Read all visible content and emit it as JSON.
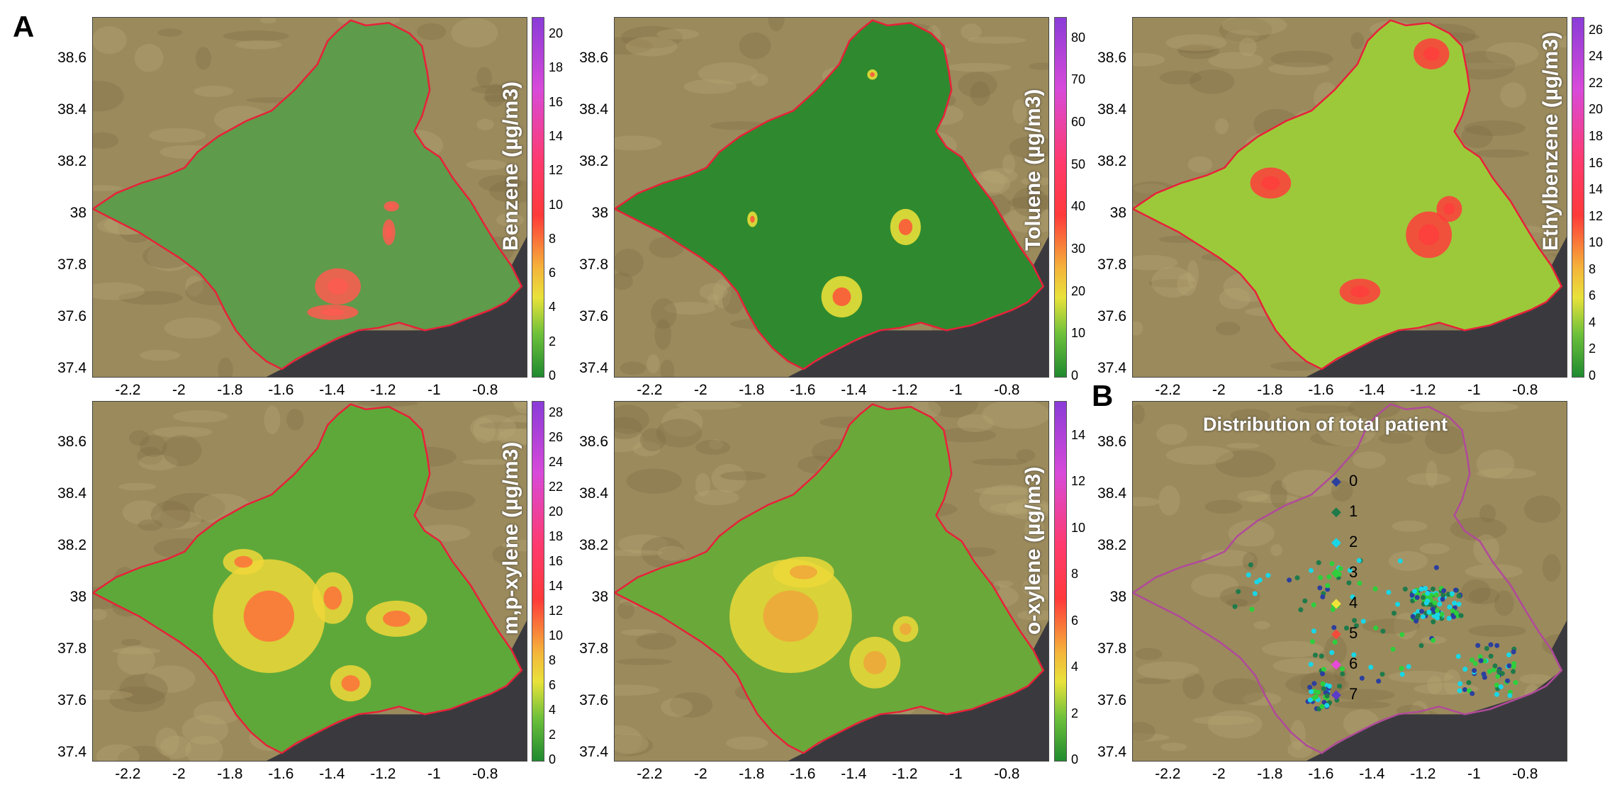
{
  "figure": {
    "panel_a_label": "A",
    "panel_b_label": "B"
  },
  "axes": {
    "lat_ticks": [
      "38.6",
      "38.4",
      "38.2",
      "38",
      "37.8",
      "37.6",
      "37.4"
    ],
    "lon_ticks": [
      "-2.2",
      "-2",
      "-1.8",
      "-1.6",
      "-1.4",
      "-1.2",
      "-1",
      "-0.8"
    ]
  },
  "maps": [
    {
      "id": "benzene",
      "colorbar_title": "Benzene (µg/m3)",
      "colorbar_ticks": [
        "20",
        "18",
        "16",
        "14",
        "12",
        "10",
        "8",
        "6",
        "4",
        "2",
        "0"
      ],
      "colorbar_range": [
        0,
        21
      ],
      "fill_color": "#5e9b4a",
      "hotspot_color": "#ff5a50"
    },
    {
      "id": "toluene",
      "colorbar_title": "Toluene (µg/m3)",
      "colorbar_ticks": [
        "80",
        "70",
        "60",
        "50",
        "40",
        "30",
        "20",
        "10",
        "0"
      ],
      "colorbar_range": [
        0,
        85
      ],
      "fill_color": "#2f8a2f",
      "hotspot_color": "#f2e33a"
    },
    {
      "id": "ethylbenzene",
      "colorbar_title": "Ethylbenzene (µg/m3)",
      "colorbar_ticks": [
        "26",
        "24",
        "22",
        "20",
        "18",
        "16",
        "14",
        "12",
        "10",
        "8",
        "6",
        "4",
        "2",
        "0"
      ],
      "colorbar_range": [
        0,
        27
      ],
      "fill_color": "#9cc93a",
      "hotspot_color": "#ff3c3c"
    },
    {
      "id": "mpxylene",
      "colorbar_title": "m,p-xylene (µg/m3)",
      "colorbar_ticks": [
        "28",
        "26",
        "24",
        "22",
        "20",
        "18",
        "16",
        "14",
        "12",
        "10",
        "8",
        "6",
        "4",
        "2",
        "0"
      ],
      "colorbar_range": [
        0,
        29
      ],
      "fill_color": "#5ea83a",
      "hotspot_color": "#f0d73a"
    },
    {
      "id": "oxylene",
      "colorbar_title": "o-xylene (µg/m3)",
      "colorbar_ticks": [
        "14",
        "12",
        "10",
        "8",
        "6",
        "4",
        "2",
        "0"
      ],
      "colorbar_range": [
        0,
        15.5
      ],
      "fill_color": "#6aa83a",
      "hotspot_color": "#ecd93a"
    }
  ],
  "patients": {
    "title": "Distribution of total patient",
    "legend": [
      {
        "label": "0",
        "color": "#2b3f9e"
      },
      {
        "label": "1",
        "color": "#1f7a4a"
      },
      {
        "label": "2",
        "color": "#19d6e6"
      },
      {
        "label": "3",
        "color": "#2ecf3c"
      },
      {
        "label": "4",
        "color": "#f2e33a"
      },
      {
        "label": "5",
        "color": "#f24b3a"
      },
      {
        "label": "6",
        "color": "#e84ad9"
      },
      {
        "label": "7",
        "color": "#5a3cc8"
      }
    ],
    "outline_color": "#b04a9a"
  },
  "colors": {
    "region_outline": "#e8213a",
    "sea": "#3a3a3e",
    "terrain": "#9b8a5c"
  }
}
